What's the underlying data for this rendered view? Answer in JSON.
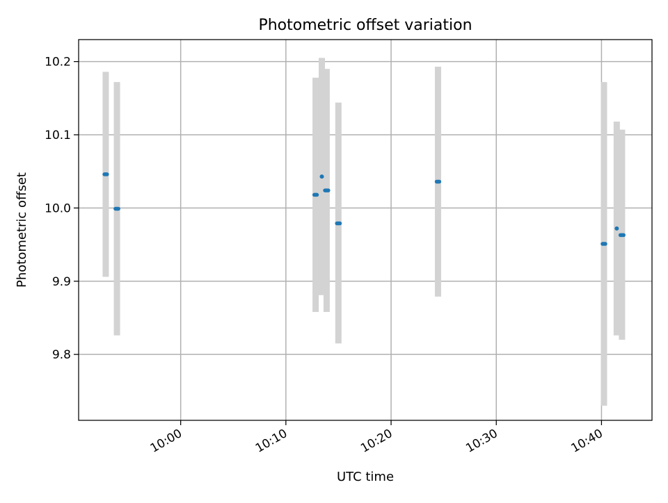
{
  "chart_data": {
    "type": "scatter",
    "title": "Photometric offset variation",
    "xlabel": "UTC time",
    "ylabel": "Photometric offset",
    "xlim": [
      "09:50:18",
      "10:44:48"
    ],
    "ylim": [
      9.71,
      10.23
    ],
    "xticks": [
      {
        "t": "10:00:00",
        "label": "10:00"
      },
      {
        "t": "10:10:00",
        "label": "10:10"
      },
      {
        "t": "10:20:00",
        "label": "10:20"
      },
      {
        "t": "10:30:00",
        "label": "10:30"
      },
      {
        "t": "10:40:00",
        "label": "10:40"
      }
    ],
    "yticks": [
      {
        "v": 9.8,
        "label": "9.8"
      },
      {
        "v": 9.9,
        "label": "9.9"
      },
      {
        "v": 10.0,
        "label": "10.0"
      },
      {
        "v": 10.1,
        "label": "10.1"
      },
      {
        "v": 10.2,
        "label": "10.2"
      }
    ],
    "grid": true,
    "colors": {
      "point": "#1f77b4",
      "errorbar": "#d3d3d3",
      "grid": "#b0b0b0"
    },
    "points": [
      {
        "t": "09:52:45",
        "t_end": "09:53:00",
        "y": 10.046,
        "lo": 9.906,
        "hi": 10.186
      },
      {
        "t": "09:53:48",
        "t_end": "09:54:05",
        "y": 9.999,
        "lo": 9.826,
        "hi": 10.172
      },
      {
        "t": "10:12:42",
        "t_end": "10:12:57",
        "y": 10.018,
        "lo": 9.858,
        "hi": 10.178
      },
      {
        "t": "10:13:25",
        "t_end": "10:13:25",
        "y": 10.043,
        "lo": 9.881,
        "hi": 10.205
      },
      {
        "t": "10:13:43",
        "t_end": "10:14:02",
        "y": 10.024,
        "lo": 9.858,
        "hi": 10.19
      },
      {
        "t": "10:14:51",
        "t_end": "10:15:08",
        "y": 9.979,
        "lo": 9.815,
        "hi": 10.144
      },
      {
        "t": "10:24:20",
        "t_end": "10:24:35",
        "y": 10.036,
        "lo": 9.879,
        "hi": 10.193
      },
      {
        "t": "10:40:06",
        "t_end": "10:40:22",
        "y": 9.951,
        "lo": 9.73,
        "hi": 10.172
      },
      {
        "t": "10:41:27",
        "t_end": "10:41:27",
        "y": 9.972,
        "lo": 9.826,
        "hi": 10.118
      },
      {
        "t": "10:41:48",
        "t_end": "10:42:06",
        "y": 9.963,
        "lo": 9.82,
        "hi": 10.107
      }
    ]
  }
}
